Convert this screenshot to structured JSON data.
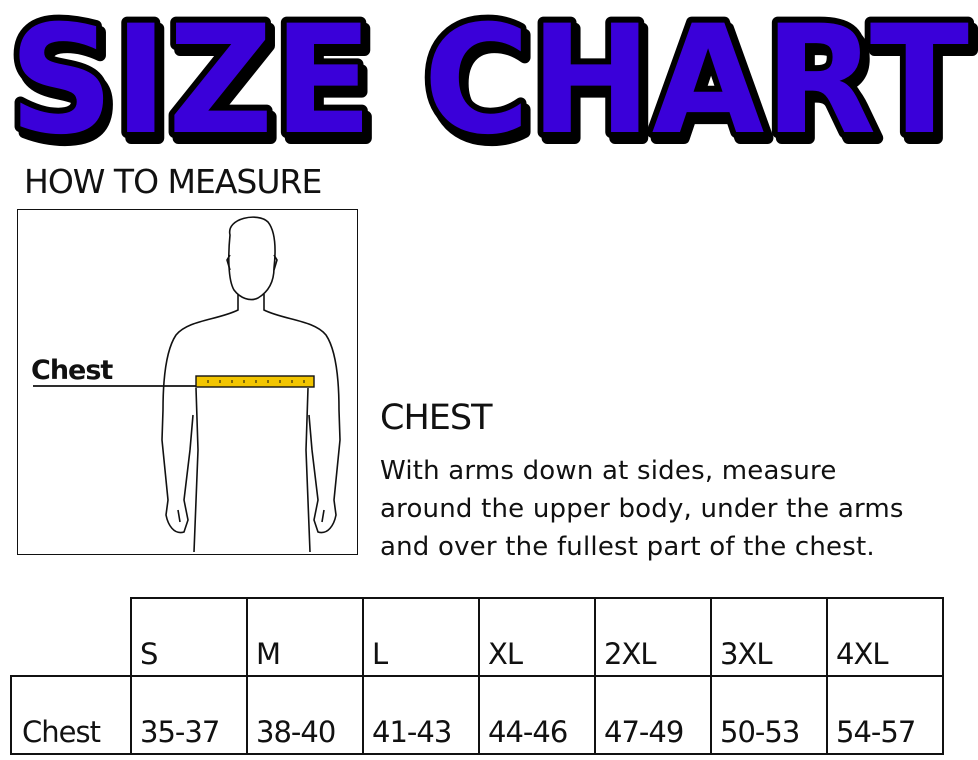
{
  "title": "SIZE CHART",
  "colors": {
    "title_fill": "#3a00d9",
    "title_outline": "#000000",
    "tape": "#f2c500"
  },
  "how_to_measure": "HOW TO MEASURE",
  "figure": {
    "label": "Chest"
  },
  "instructions": {
    "heading": "CHEST",
    "text": "With arms down at sides, measure\naround the upper body, under the arms\nand over the fullest part of the chest."
  },
  "table": {
    "sizes": [
      "S",
      "M",
      "L",
      "XL",
      "2XL",
      "3XL",
      "4XL"
    ],
    "rows": [
      {
        "label": "Chest",
        "values": [
          "35-37",
          "38-40",
          "41-43",
          "44-46",
          "47-49",
          "50-53",
          "54-57"
        ]
      }
    ]
  }
}
